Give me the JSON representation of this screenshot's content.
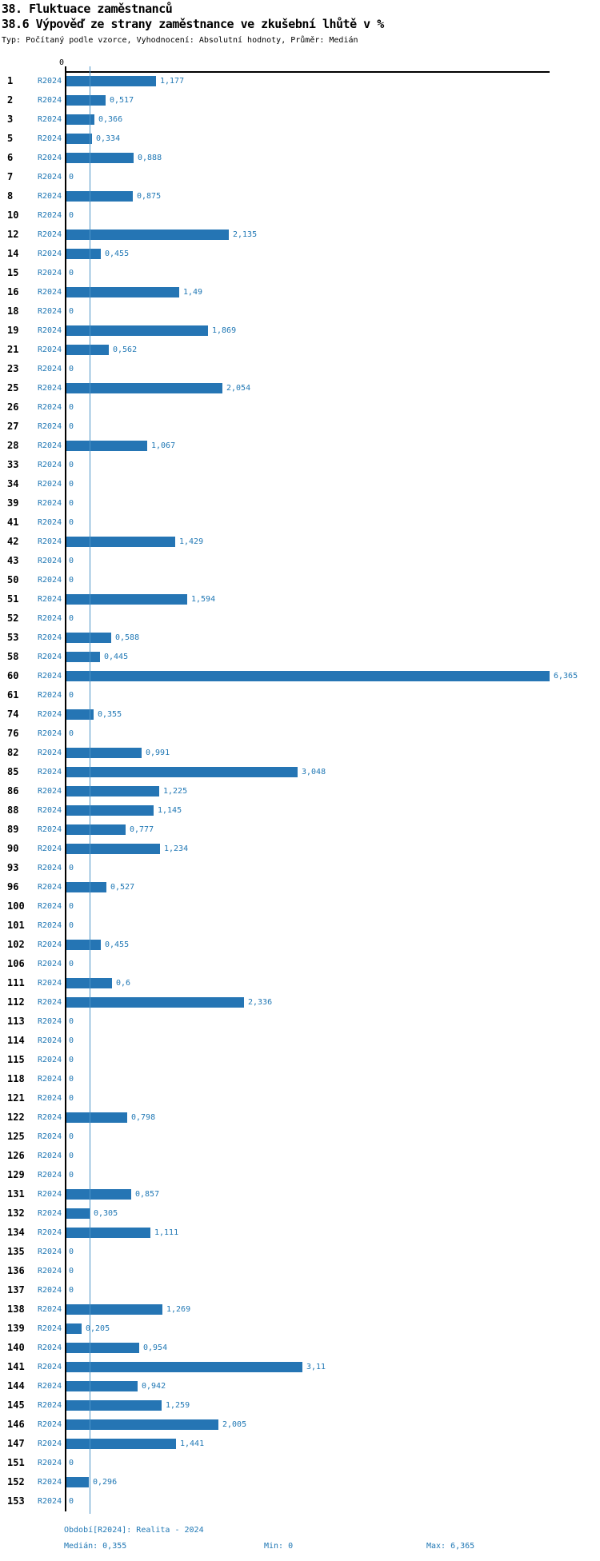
{
  "header": {
    "title1": "38. Fluktuace zaměstnanců",
    "title2": "38.6 Výpověď ze strany zaměstnance ve zkušební lhůtě v %",
    "meta": "Typ: Počítaný podle vzorce, Vyhodnocení: Absolutní hodnoty, Průměr: Medián"
  },
  "chart_data": {
    "type": "bar",
    "orientation": "horizontal",
    "series_label": "R2024",
    "axis_zero_label": "0",
    "xlim": [
      0,
      6.365
    ],
    "median": 0.355,
    "grid": false,
    "categories": [
      "1",
      "2",
      "3",
      "5",
      "6",
      "7",
      "8",
      "10",
      "12",
      "14",
      "15",
      "16",
      "18",
      "19",
      "21",
      "23",
      "25",
      "26",
      "27",
      "28",
      "33",
      "34",
      "39",
      "41",
      "42",
      "43",
      "50",
      "51",
      "52",
      "53",
      "58",
      "60",
      "61",
      "74",
      "76",
      "82",
      "85",
      "86",
      "88",
      "89",
      "90",
      "93",
      "96",
      "100",
      "101",
      "102",
      "106",
      "111",
      "112",
      "113",
      "114",
      "115",
      "118",
      "121",
      "122",
      "125",
      "126",
      "129",
      "131",
      "132",
      "134",
      "135",
      "136",
      "137",
      "138",
      "139",
      "140",
      "141",
      "144",
      "145",
      "146",
      "147",
      "151",
      "152",
      "153"
    ],
    "values": [
      1.177,
      0.517,
      0.366,
      0.334,
      0.888,
      0,
      0.875,
      0,
      2.135,
      0.455,
      0,
      1.49,
      0,
      1.869,
      0.562,
      0,
      2.054,
      0,
      0,
      1.067,
      0,
      0,
      0,
      0,
      1.429,
      0,
      0,
      1.594,
      0,
      0.588,
      0.445,
      6.365,
      0,
      0.355,
      0,
      0.991,
      3.048,
      1.225,
      1.145,
      0.777,
      1.234,
      0,
      0.527,
      0,
      0,
      0.455,
      0,
      0.6,
      2.336,
      0,
      0,
      0,
      0,
      0,
      0.798,
      0,
      0,
      0,
      0.857,
      0.305,
      1.111,
      0,
      0,
      0,
      1.269,
      0.205,
      0.954,
      3.11,
      0.942,
      1.259,
      2.005,
      1.441,
      0,
      0.296,
      0
    ],
    "value_labels": [
      "1,177",
      "0,517",
      "0,366",
      "0,334",
      "0,888",
      "0",
      "0,875",
      "0",
      "2,135",
      "0,455",
      "0",
      "1,49",
      "0",
      "1,869",
      "0,562",
      "0",
      "2,054",
      "0",
      "0",
      "1,067",
      "0",
      "0",
      "0",
      "0",
      "1,429",
      "0",
      "0",
      "1,594",
      "0",
      "0,588",
      "0,445",
      "6,365",
      "0",
      "0,355",
      "0",
      "0,991",
      "3,048",
      "1,225",
      "1,145",
      "0,777",
      "1,234",
      "0",
      "0,527",
      "0",
      "0",
      "0,455",
      "0",
      "0,6",
      "2,336",
      "0",
      "0",
      "0",
      "0",
      "0",
      "0,798",
      "0",
      "0",
      "0",
      "0,857",
      "0,305",
      "1,111",
      "0",
      "0",
      "0",
      "1,269",
      "0,205",
      "0,954",
      "3,11",
      "0,942",
      "1,259",
      "2,005",
      "1,441",
      "0",
      "0,296",
      "0"
    ],
    "colors": {
      "bar": "#2575b4",
      "median_line": "#4d94c8",
      "label_blue": "#1f77b4",
      "axis": "#000000"
    }
  },
  "footer": {
    "period": "Období[R2024]: Realita - 2024",
    "median": "Medián: 0,355",
    "min": "Min: 0",
    "max": "Max: 6,365"
  }
}
